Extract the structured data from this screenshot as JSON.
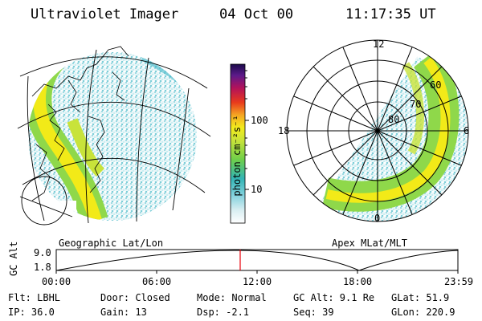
{
  "header": {
    "title": "Ultraviolet Imager",
    "date": "04 Oct 00",
    "time": "11:17:35 UT"
  },
  "colorbar": {
    "unit_label": "photon cm⁻²s⁻¹",
    "ticks": [
      "100",
      "10"
    ]
  },
  "left_panel": {
    "label": "Geographic Lat/Lon"
  },
  "right_panel": {
    "label": "Apex MLat/MLT",
    "mlt_labels": [
      "12",
      "18",
      "6",
      "0"
    ],
    "mlat_labels": [
      "60",
      "70",
      "80"
    ]
  },
  "timeline": {
    "ylabel": "GC Alt",
    "yticks": [
      "9.0",
      "1.8"
    ],
    "xticks": [
      "00:00",
      "06:00",
      "12:00",
      "18:00",
      "23:59"
    ],
    "current_time": "11:17:35"
  },
  "status": {
    "filter": "Flt: LBHL",
    "door": "Door: Closed",
    "mode": "Mode: Normal",
    "gc_alt": "GC Alt: 9.1 Re",
    "glat": "GLat:  51.9",
    "ip": "IP: 36.0",
    "gain": "Gain: 13",
    "dsp": "Dsp:   -2.1",
    "seq": "Seq: 39",
    "glon": "GLon: 220.9"
  },
  "colors": {
    "current_time_marker": "#e8000b",
    "aurora_bright": "#f2ea18",
    "aurora_mid": "#8fd84a",
    "aurora_low": "#3fb6c7"
  }
}
